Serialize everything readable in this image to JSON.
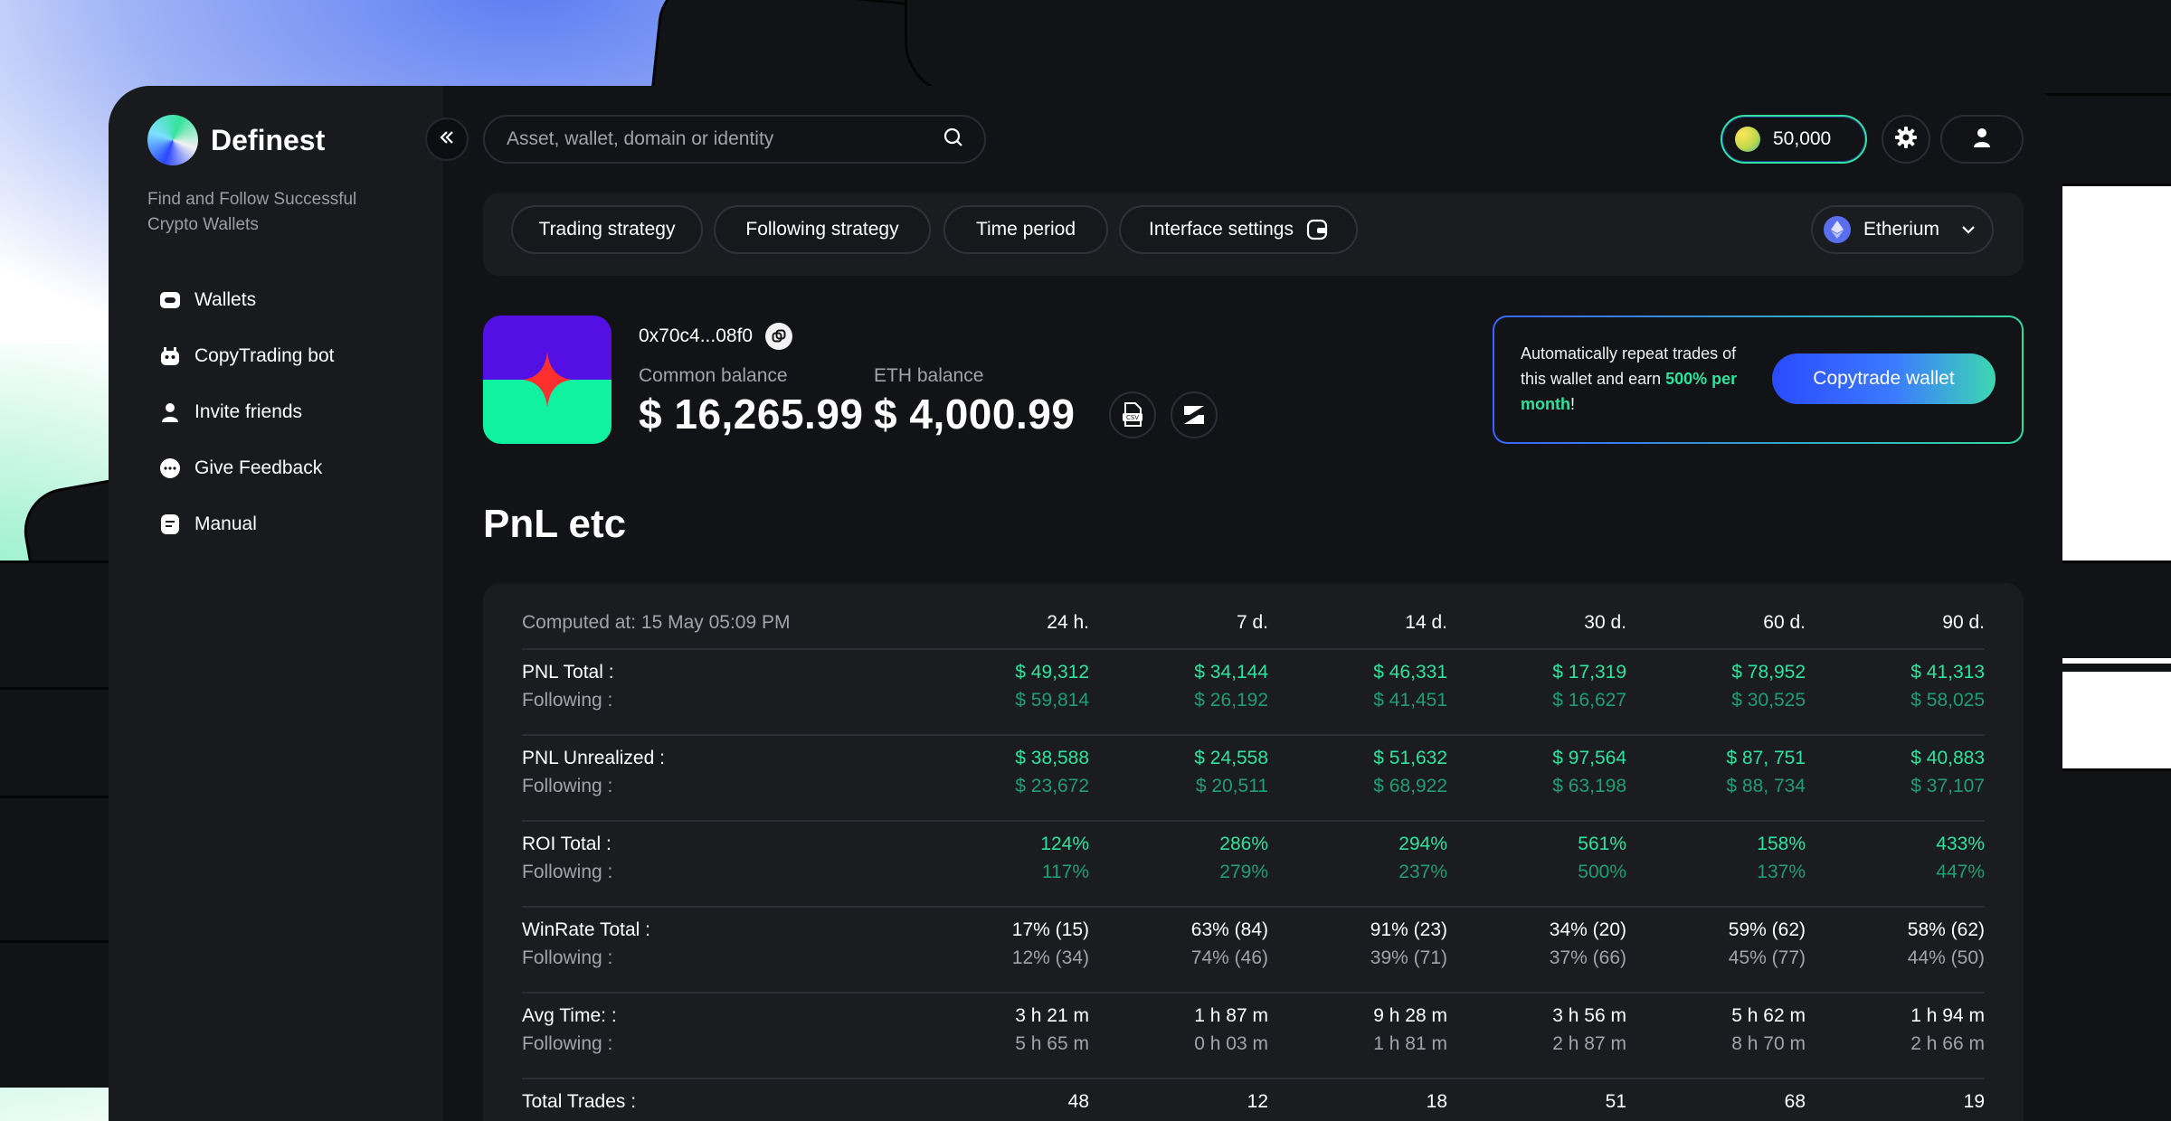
{
  "app": {
    "name": "Definest",
    "tagline": "Find and Follow Successful Crypto Wallets"
  },
  "sidebar": {
    "items": [
      {
        "label": "Wallets",
        "icon": "wallet-icon"
      },
      {
        "label": "CopyTrading bot",
        "icon": "bot-icon"
      },
      {
        "label": "Invite friends",
        "icon": "user-icon"
      },
      {
        "label": "Give Feedback",
        "icon": "chat-icon"
      },
      {
        "label": "Manual",
        "icon": "document-icon"
      }
    ]
  },
  "header": {
    "search_placeholder": "Asset, wallet, domain or identity",
    "coin_balance": "50,000"
  },
  "filters": {
    "chips": [
      "Trading strategy",
      "Following strategy",
      "Time period",
      "Interface settings"
    ],
    "chain": "Etherium"
  },
  "wallet": {
    "address": "0x70c4...08f0",
    "common_balance_label": "Common balance",
    "common_balance": "$ 16,265.99",
    "eth_balance_label": "ETH balance",
    "eth_balance": "$ 4,000.99"
  },
  "promo": {
    "text_1": "Automatically repeat trades of this wallet and earn ",
    "highlight": "500% per month",
    "text_2": "!",
    "button": "Copytrade wallet"
  },
  "section_title": "PnL etc",
  "table": {
    "computed_at": "Computed at: 15 May 05:09 PM",
    "periods": [
      "24 h.",
      "7 d.",
      "14 d.",
      "30 d.",
      "60 d.",
      "90 d."
    ],
    "rows": [
      {
        "label": "PNL Total :",
        "sub": "Following :",
        "style": "green",
        "values": [
          "$ 49,312",
          "$ 34,144",
          "$ 46,331",
          "$ 17,319",
          "$ 78,952",
          "$ 41,313"
        ],
        "following": [
          "$ 59,814",
          "$ 26,192",
          "$ 41,451",
          "$ 16,627",
          "$ 30,525",
          "$ 58,025"
        ]
      },
      {
        "label": "PNL Unrealized :",
        "sub": "Following :",
        "style": "green",
        "values": [
          "$ 38,588",
          "$ 24,558",
          "$ 51,632",
          "$ 97,564",
          "$ 87, 751",
          "$ 40,883"
        ],
        "following": [
          "$ 23,672",
          "$ 20,511",
          "$ 68,922",
          "$ 63,198",
          "$ 88, 734",
          "$ 37,107"
        ]
      },
      {
        "label": "ROI Total :",
        "sub": "Following :",
        "style": "green",
        "values": [
          "124%",
          "286%",
          "294%",
          "561%",
          "158%",
          "433%"
        ],
        "following": [
          "117%",
          "279%",
          "237%",
          "500%",
          "137%",
          "447%"
        ]
      },
      {
        "label": "WinRate Total :",
        "sub": "Following :",
        "style": "white",
        "values": [
          "17% (15)",
          "63% (84)",
          "91% (23)",
          "34% (20)",
          "59% (62)",
          "58% (62)"
        ],
        "following": [
          "12% (34)",
          "74% (46)",
          "39% (71)",
          "37% (66)",
          "45% (77)",
          "44% (50)"
        ]
      },
      {
        "label": "Avg Time: :",
        "sub": "Following :",
        "style": "white",
        "values": [
          "3 h 21 m",
          "1 h 87 m",
          "9 h 28 m",
          "3 h 56 m",
          "5 h 62 m",
          "1 h 94 m"
        ],
        "following": [
          "5 h 65 m",
          "0 h 03 m",
          "1 h 81 m",
          "2 h 87 m",
          "8 h 70 m",
          "2 h 66 m"
        ]
      },
      {
        "label": "Total Trades :",
        "sub": "",
        "style": "white",
        "values": [
          "48",
          "12",
          "18",
          "51",
          "68",
          "19"
        ],
        "following": []
      }
    ]
  }
}
